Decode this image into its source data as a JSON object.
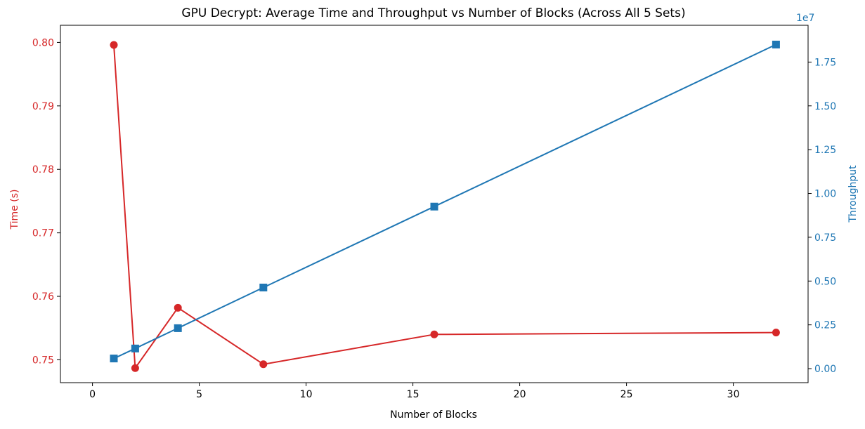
{
  "chart_data": {
    "type": "line",
    "title": "GPU Decrypt: Average Time and Throughput vs Number of Blocks (Across All 5 Sets)",
    "xlabel": "Number of Blocks",
    "ylabel_left": "Time (s)",
    "ylabel_right": "Throughput",
    "right_axis_multiplier": "1e7",
    "xlim": [
      -1.5,
      33.5
    ],
    "ylim_left": [
      0.7464,
      0.8027
    ],
    "ylim_right": [
      -0.08,
      1.96
    ],
    "x_ticks": [
      0,
      5,
      10,
      15,
      20,
      25,
      30
    ],
    "x_tick_labels": [
      "0",
      "5",
      "10",
      "15",
      "20",
      "25",
      "30"
    ],
    "left_ticks": [
      0.75,
      0.76,
      0.77,
      0.78,
      0.79,
      0.8
    ],
    "left_tick_labels": [
      "0.75",
      "0.76",
      "0.77",
      "0.78",
      "0.79",
      "0.80"
    ],
    "right_ticks": [
      0.0,
      0.25,
      0.5,
      0.75,
      1.0,
      1.25,
      1.5,
      1.75
    ],
    "right_tick_labels": [
      "0.00",
      "0.25",
      "0.50",
      "0.75",
      "1.00",
      "1.25",
      "1.50",
      "1.75"
    ],
    "grid": false,
    "colors": {
      "time": "#d62728",
      "throughput": "#1f77b4"
    },
    "series": [
      {
        "axis": "left",
        "marker": "circle",
        "color": "#d62728",
        "x": [
          1,
          2,
          4,
          8,
          16,
          32
        ],
        "values": [
          0.7996,
          0.7487,
          0.7582,
          0.7493,
          0.754,
          0.7543
        ]
      },
      {
        "axis": "right",
        "marker": "square",
        "color": "#1f77b4",
        "x": [
          1,
          2,
          4,
          8,
          16,
          32
        ],
        "values": [
          0.058,
          0.115,
          0.231,
          0.463,
          0.925,
          1.85
        ]
      }
    ]
  }
}
